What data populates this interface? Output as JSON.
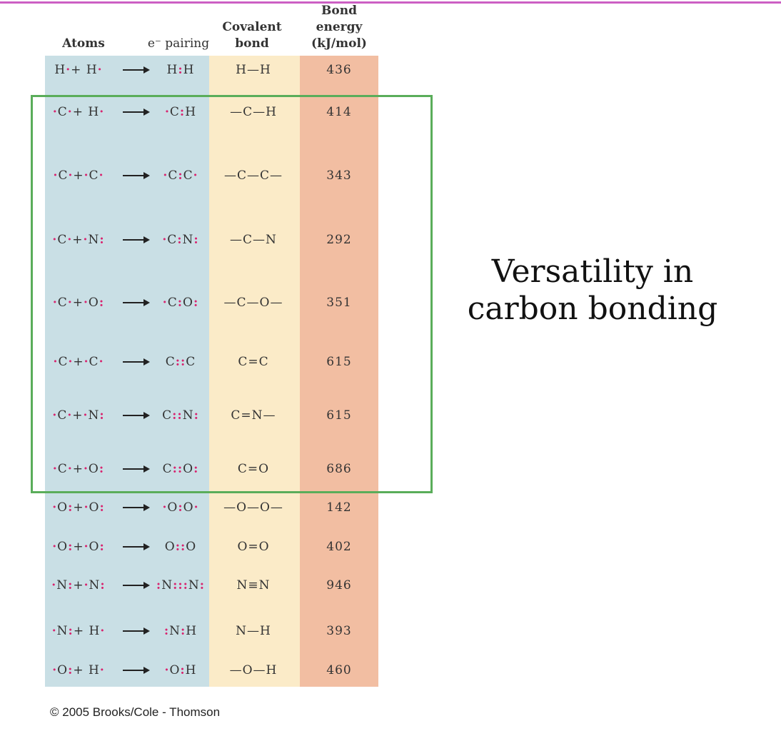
{
  "table": {
    "headers": [
      "Atoms",
      "e⁻ pairing",
      "Covalent bond",
      "Bond energy (kJ/mol)"
    ],
    "rows": [
      [
        "H·+ H·",
        "H:H",
        "H—H",
        "436"
      ],
      [
        "·C·+ H·",
        "·C:H",
        "—C—H",
        "414"
      ],
      [
        "·C·+·C·",
        "·C:C·",
        "—C—C—",
        "343"
      ],
      [
        "·C·+·N:",
        "·C:N:",
        "—C—N",
        "292"
      ],
      [
        "·C·+·O:",
        "·C:O:",
        "—C—O—",
        "351"
      ],
      [
        "·C·+·C·",
        "C::C",
        "C=C",
        "615"
      ],
      [
        "·C·+·N:",
        "C::N:",
        "C=N—",
        "615"
      ],
      [
        "·C·+·O:",
        "C::O:",
        "C=O",
        "686"
      ],
      [
        "·O:+·O:",
        "·O:O·",
        "—O—O—",
        "142"
      ],
      [
        "·O:+·O:",
        "O::O",
        "O=O",
        "402"
      ],
      [
        "·N:+·N:",
        ":N:::N:",
        "N≡N",
        "946"
      ],
      [
        "·N:+ H·",
        ":N:H",
        "N—H",
        "393"
      ],
      [
        "·O:+ H·",
        "·O:H",
        "—O—H",
        "460"
      ]
    ]
  },
  "side_text": "Versatility in carbon bonding",
  "copyright": "© 2005 Brooks/Cole - Thomson"
}
